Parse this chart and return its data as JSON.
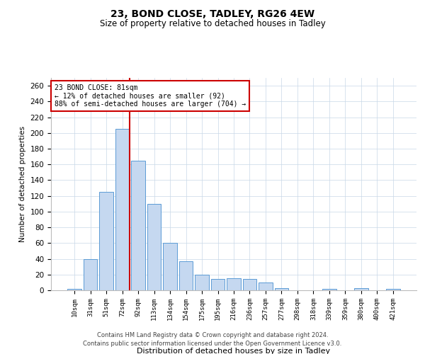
{
  "title1": "23, BOND CLOSE, TADLEY, RG26 4EW",
  "title2": "Size of property relative to detached houses in Tadley",
  "xlabel": "Distribution of detached houses by size in Tadley",
  "ylabel": "Number of detached properties",
  "categories": [
    "10sqm",
    "31sqm",
    "51sqm",
    "72sqm",
    "92sqm",
    "113sqm",
    "134sqm",
    "154sqm",
    "175sqm",
    "195sqm",
    "216sqm",
    "236sqm",
    "257sqm",
    "277sqm",
    "298sqm",
    "318sqm",
    "339sqm",
    "359sqm",
    "380sqm",
    "400sqm",
    "421sqm"
  ],
  "values": [
    2,
    40,
    125,
    205,
    165,
    110,
    60,
    37,
    20,
    14,
    15,
    14,
    10,
    3,
    0,
    0,
    2,
    0,
    3,
    0,
    2
  ],
  "bar_color": "#c5d8f0",
  "bar_edge_color": "#5b9bd5",
  "vline_color": "#cc0000",
  "annotation_text": "23 BOND CLOSE: 81sqm\n← 12% of detached houses are smaller (92)\n88% of semi-detached houses are larger (704) →",
  "annotation_box_color": "#ffffff",
  "annotation_box_edge": "#cc0000",
  "ylim": [
    0,
    270
  ],
  "yticks": [
    0,
    20,
    40,
    60,
    80,
    100,
    120,
    140,
    160,
    180,
    200,
    220,
    240,
    260
  ],
  "footer1": "Contains HM Land Registry data © Crown copyright and database right 2024.",
  "footer2": "Contains public sector information licensed under the Open Government Licence v3.0.",
  "background_color": "#ffffff",
  "grid_color": "#c8d8e8"
}
